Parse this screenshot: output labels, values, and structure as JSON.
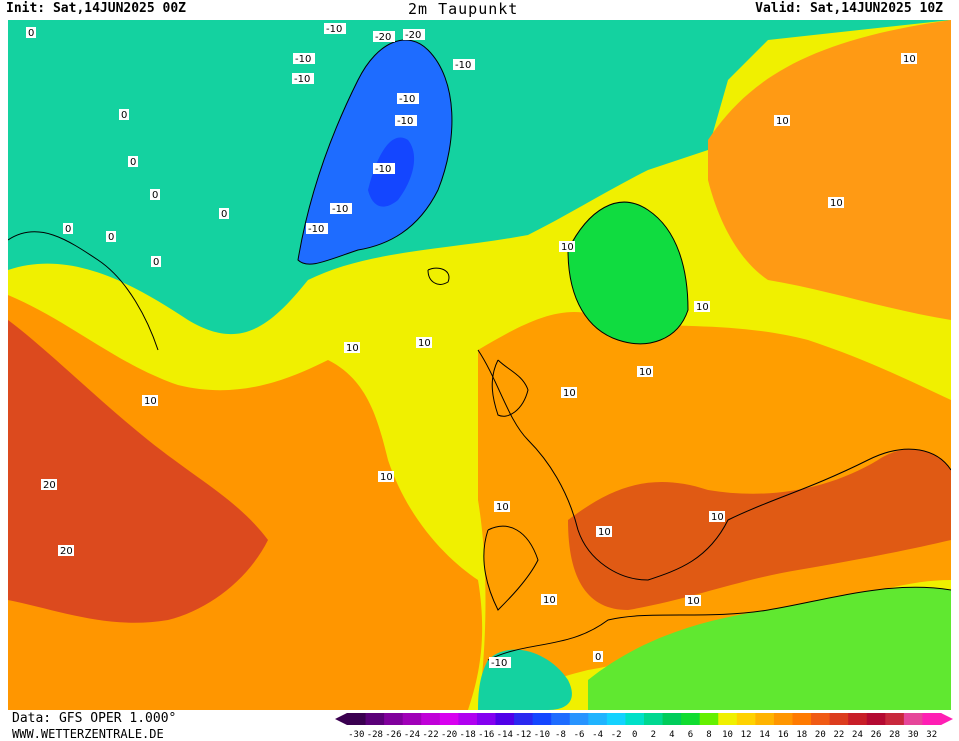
{
  "header": {
    "init": "Init: Sat,14JUN2025 00Z",
    "title": "2m Taupunkt",
    "valid": "Valid: Sat,14JUN2025 10Z"
  },
  "footer": {
    "data_source": "Data: GFS OPER 1.000°",
    "site": "WWW.WETTERZENTRALE.DE"
  },
  "legend": {
    "ticks": [
      "-30",
      "-28",
      "-26",
      "-24",
      "-22",
      "-20",
      "-18",
      "-16",
      "-14",
      "-12",
      "-10",
      "-8",
      "-6",
      "-4",
      "-2",
      "0",
      "2",
      "4",
      "6",
      "8",
      "10",
      "12",
      "14",
      "16",
      "18",
      "20",
      "22",
      "24",
      "26",
      "28",
      "30",
      "32"
    ],
    "colors": [
      "#3a0050",
      "#5a0078",
      "#80009c",
      "#a000b8",
      "#c000d8",
      "#d800f0",
      "#b000f0",
      "#8400f0",
      "#5000e8",
      "#2a28f0",
      "#1446ff",
      "#1e6cff",
      "#2894ff",
      "#20b4ff",
      "#14d2ff",
      "#00e0c8",
      "#00d890",
      "#00cc5a",
      "#10dc30",
      "#64f000",
      "#f0f000",
      "#ffd200",
      "#ffb400",
      "#ff9600",
      "#ff7a00",
      "#f05a14",
      "#dc3c1e",
      "#c81e28",
      "#b40a32",
      "#c8283c",
      "#e6469a",
      "#ff1eb4"
    ]
  },
  "map": {
    "regions": [
      {
        "name": "arctic-green-region",
        "color": "#14d2a0"
      },
      {
        "name": "greenland-blue-region",
        "color": "#1e6cff"
      },
      {
        "name": "yellow-band-region",
        "color": "#f0f000"
      },
      {
        "name": "atlantic-orange-region",
        "color": "#ff9600"
      },
      {
        "name": "atlantic-red-region",
        "color": "#dc4a1e"
      },
      {
        "name": "europe-orange-region",
        "color": "#ff9e00"
      },
      {
        "name": "scandinavia-green-region",
        "color": "#10dc40"
      },
      {
        "name": "mediterranean-red-region",
        "color": "#e05a14"
      },
      {
        "name": "russia-orange-region",
        "color": "#ff9a14"
      },
      {
        "name": "africa-green-region",
        "color": "#60e830"
      }
    ],
    "labels": [
      {
        "text": "0"
      },
      {
        "text": "0"
      },
      {
        "text": "0"
      },
      {
        "text": "0"
      },
      {
        "text": "0"
      },
      {
        "text": "0"
      },
      {
        "text": "0"
      },
      {
        "text": "0"
      },
      {
        "text": "-10"
      },
      {
        "text": "-20"
      },
      {
        "text": "-20"
      },
      {
        "text": "-10"
      },
      {
        "text": "-10"
      },
      {
        "text": "-10"
      },
      {
        "text": "-10"
      },
      {
        "text": "-10"
      },
      {
        "text": "-10"
      },
      {
        "text": "-10"
      },
      {
        "text": "-10"
      },
      {
        "text": "10"
      },
      {
        "text": "10"
      },
      {
        "text": "10"
      },
      {
        "text": "10"
      },
      {
        "text": "10"
      },
      {
        "text": "10"
      },
      {
        "text": "10"
      },
      {
        "text": "10"
      },
      {
        "text": "10"
      },
      {
        "text": "10"
      },
      {
        "text": "20"
      },
      {
        "text": "20"
      },
      {
        "text": "10"
      },
      {
        "text": "10"
      },
      {
        "text": "10"
      },
      {
        "text": "10"
      },
      {
        "text": "10"
      },
      {
        "text": "10"
      },
      {
        "text": "-10"
      },
      {
        "text": "0"
      }
    ]
  }
}
